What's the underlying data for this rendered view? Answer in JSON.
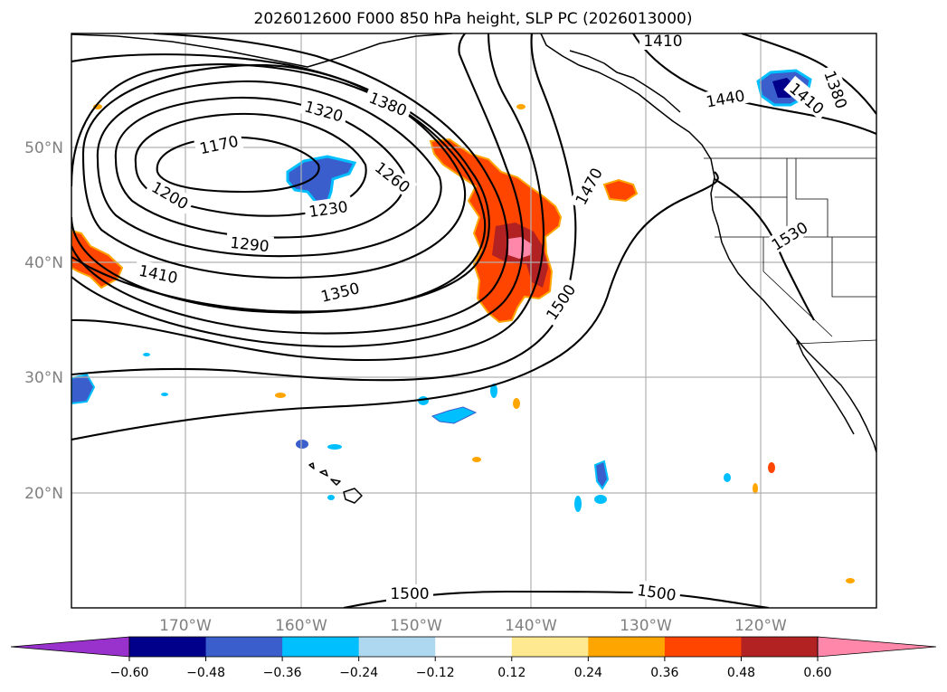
{
  "chart_data": {
    "type": "contour_map",
    "title": "2026012600 F000 850 hPa height, SLP PC (2026013000)",
    "lon_ticks": [
      "170°W",
      "160°W",
      "150°W",
      "140°W",
      "130°W",
      "120°W"
    ],
    "lat_ticks": [
      "50°N",
      "40°N",
      "30°N",
      "20°N"
    ],
    "lon_range": [
      -180,
      -110
    ],
    "lat_range": [
      10,
      60
    ],
    "height_contour_labels": [
      {
        "name": "label-1170",
        "text": "1170"
      },
      {
        "name": "label-1200",
        "text": "1200"
      },
      {
        "name": "label-1230",
        "text": "1230"
      },
      {
        "name": "label-1260",
        "text": "1260"
      },
      {
        "name": "label-1290",
        "text": "1290"
      },
      {
        "name": "label-1320",
        "text": "1320"
      },
      {
        "name": "label-1350",
        "text": "1350"
      },
      {
        "name": "label-1380",
        "text": "1380"
      },
      {
        "name": "label-1410-west",
        "text": "1410"
      },
      {
        "name": "label-1410-north",
        "text": "1410"
      },
      {
        "name": "label-1410-ne",
        "text": "1410"
      },
      {
        "name": "label-1440",
        "text": "1440"
      },
      {
        "name": "label-1470",
        "text": "1470"
      },
      {
        "name": "label-1500-mid",
        "text": "1500"
      },
      {
        "name": "label-1500-south-a",
        "text": "1500"
      },
      {
        "name": "label-1500-south-b",
        "text": "1500"
      },
      {
        "name": "label-1530",
        "text": "1530"
      },
      {
        "name": "label-1380-ne",
        "text": "1380"
      }
    ],
    "colorbar": {
      "ticks": [
        "−0.60",
        "−0.48",
        "−0.36",
        "−0.24",
        "−0.12",
        "0.12",
        "0.24",
        "0.36",
        "0.48",
        "0.60"
      ],
      "colors": [
        "#9932cc",
        "#00008b",
        "#3a5fcd",
        "#00bfff",
        "#add8f0",
        "#ffffff",
        "#ffe990",
        "#ffa500",
        "#ff4500",
        "#b22222",
        "#ff88aa"
      ],
      "extend": "both"
    }
  }
}
